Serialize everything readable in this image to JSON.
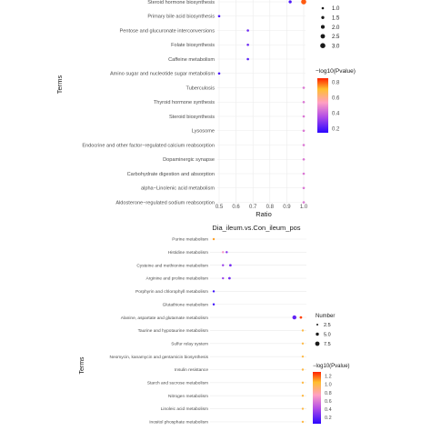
{
  "colors": {
    "panel_bg": "#ffffff",
    "grid": "#ebebeb",
    "axis_text": "#4d4d4d",
    "title_text": "#1a1a1a"
  },
  "chart_data": [
    {
      "type": "scatter",
      "title": "",
      "xlabel": "Ratio",
      "ylabel": "Terms",
      "xlim": [
        0.5,
        1.0
      ],
      "x_ticks": [
        "0.5",
        "0.6",
        "0.7",
        "0.8",
        "0.9",
        "1.0"
      ],
      "grid": true,
      "terms": [
        "Steroid hormone biosynthesis",
        "Primary bile acid biosynthesis",
        "Pentose and glucuronate interconversions",
        "Folate biosynthesis",
        "Caffeine metabolism",
        "Amino sugar and nucleotide sugar metabolism",
        "Tuberculosis",
        "Thyroid hormone synthesis",
        "Steroid biosynthesis",
        "Lysosome",
        "Endocrine and other factor−regulated calcium reabsorption",
        "Dopaminergic synapse",
        "Carbohydrate digestion and absorption",
        "alpha−Linolenic acid metabolism",
        "Aldosterone−regulated sodium reabsorption"
      ],
      "points": [
        {
          "term": "Steroid hormone biosynthesis",
          "ratio": 0.92,
          "number": 1.5,
          "pvalue": 0.2
        },
        {
          "term": "Steroid hormone biosynthesis",
          "ratio": 1.0,
          "number": 3.0,
          "pvalue": 0.8
        },
        {
          "term": "Primary bile acid biosynthesis",
          "ratio": 0.5,
          "number": 1.0,
          "pvalue": 0.2
        },
        {
          "term": "Pentose and glucuronate interconversions",
          "ratio": 0.67,
          "number": 1.0,
          "pvalue": 0.25
        },
        {
          "term": "Folate biosynthesis",
          "ratio": 0.67,
          "number": 1.0,
          "pvalue": 0.25
        },
        {
          "term": "Caffeine metabolism",
          "ratio": 0.67,
          "number": 1.0,
          "pvalue": 0.22
        },
        {
          "term": "Amino sugar and nucleotide sugar metabolism",
          "ratio": 0.5,
          "number": 1.0,
          "pvalue": 0.2
        },
        {
          "term": "Tuberculosis",
          "ratio": 1.0,
          "number": 1.0,
          "pvalue": 0.45
        },
        {
          "term": "Thyroid hormone synthesis",
          "ratio": 1.0,
          "number": 1.0,
          "pvalue": 0.45
        },
        {
          "term": "Steroid biosynthesis",
          "ratio": 1.0,
          "number": 1.0,
          "pvalue": 0.45
        },
        {
          "term": "Lysosome",
          "ratio": 1.0,
          "number": 1.0,
          "pvalue": 0.45
        },
        {
          "term": "Endocrine and other factor−regulated calcium reabsorption",
          "ratio": 1.0,
          "number": 1.0,
          "pvalue": 0.45
        },
        {
          "term": "Dopaminergic synapse",
          "ratio": 1.0,
          "number": 1.0,
          "pvalue": 0.45
        },
        {
          "term": "Carbohydrate digestion and absorption",
          "ratio": 1.0,
          "number": 1.0,
          "pvalue": 0.45
        },
        {
          "term": "alpha−Linolenic acid metabolism",
          "ratio": 1.0,
          "number": 1.0,
          "pvalue": 0.45
        },
        {
          "term": "Aldosterone−regulated sodium reabsorption",
          "ratio": 1.0,
          "number": 1.0,
          "pvalue": 0.45
        }
      ],
      "size_legend": {
        "title": "",
        "values": [
          "1.0",
          "1.5",
          "2.0",
          "2.5",
          "3.0"
        ]
      },
      "color_legend": {
        "title": "−log10(Pvalue)",
        "ticks": [
          "0.8",
          "0.6",
          "0.4",
          "0.2"
        ],
        "range": [
          0.15,
          0.85
        ]
      }
    },
    {
      "type": "scatter",
      "title": "Dia_ileum.vs.Con_ileum_pos",
      "xlabel": "",
      "ylabel": "Terms",
      "xlim": [
        0.0,
        1.0
      ],
      "grid": true,
      "terms": [
        "Purine metabolism",
        "Histidine metabolism",
        "Cysteine and methionine metabolism",
        "Arginine and proline metabolism",
        "Porphyrin and chlorophyll metabolism",
        "Glutathione metabolism",
        "Alanine, aspartate and glutamate metabolism",
        "Taurine and hypotaurine metabolism",
        "Sulfur relay system",
        "Neomycin, kanamycin and gentamicin biosynthesis",
        "Insulin resistance",
        "Starch and sucrose metabolism",
        "Nitrogen metabolism",
        "Linoleic acid metabolism",
        "Inositol phosphate metabolism"
      ],
      "points": [
        {
          "term": "Purine metabolism",
          "ratio": 0.02,
          "number": 2.0,
          "pvalue": 1.1
        },
        {
          "term": "Histidine metabolism",
          "ratio": 0.12,
          "number": 2.0,
          "pvalue": 0.7
        },
        {
          "term": "Histidine metabolism",
          "ratio": 0.16,
          "number": 2.0,
          "pvalue": 0.3
        },
        {
          "term": "Cysteine and methionine metabolism",
          "ratio": 0.12,
          "number": 2.0,
          "pvalue": 0.35
        },
        {
          "term": "Cysteine and methionine metabolism",
          "ratio": 0.2,
          "number": 3.0,
          "pvalue": 0.25
        },
        {
          "term": "Arginine and proline metabolism",
          "ratio": 0.12,
          "number": 2.0,
          "pvalue": 0.35
        },
        {
          "term": "Arginine and proline metabolism",
          "ratio": 0.19,
          "number": 3.0,
          "pvalue": 0.25
        },
        {
          "term": "Porphyrin and chlorophyll metabolism",
          "ratio": 0.02,
          "number": 2.0,
          "pvalue": 0.1
        },
        {
          "term": "Glutathione metabolism",
          "ratio": 0.02,
          "number": 2.0,
          "pvalue": 0.1
        },
        {
          "term": "Alanine, aspartate and glutamate metabolism",
          "ratio": 0.89,
          "number": 7.5,
          "pvalue": 0.2
        },
        {
          "term": "Alanine, aspartate and glutamate metabolism",
          "ratio": 0.96,
          "number": 3.0,
          "pvalue": 1.25
        },
        {
          "term": "Taurine and hypotaurine metabolism",
          "ratio": 0.98,
          "number": 2.0,
          "pvalue": 1.0
        },
        {
          "term": "Sulfur relay system",
          "ratio": 0.98,
          "number": 2.0,
          "pvalue": 1.0
        },
        {
          "term": "Neomycin, kanamycin and gentamicin biosynthesis",
          "ratio": 0.98,
          "number": 2.0,
          "pvalue": 1.0
        },
        {
          "term": "Insulin resistance",
          "ratio": 0.98,
          "number": 2.0,
          "pvalue": 1.0
        },
        {
          "term": "Starch and sucrose metabolism",
          "ratio": 0.98,
          "number": 2.0,
          "pvalue": 1.0
        },
        {
          "term": "Nitrogen metabolism",
          "ratio": 0.98,
          "number": 2.0,
          "pvalue": 1.0
        },
        {
          "term": "Linoleic acid metabolism",
          "ratio": 0.98,
          "number": 2.0,
          "pvalue": 1.0
        },
        {
          "term": "Inositol phosphate metabolism",
          "ratio": 0.98,
          "number": 2.0,
          "pvalue": 1.0
        }
      ],
      "size_legend": {
        "title": "Number",
        "values": [
          "2.5",
          "5.0",
          "7.5"
        ]
      },
      "color_legend": {
        "title": "−log10(Pvalue)",
        "ticks": [
          "1.2",
          "1.0",
          "0.8",
          "0.6",
          "0.4",
          "0.2"
        ],
        "range": [
          0.05,
          1.3
        ]
      }
    }
  ]
}
